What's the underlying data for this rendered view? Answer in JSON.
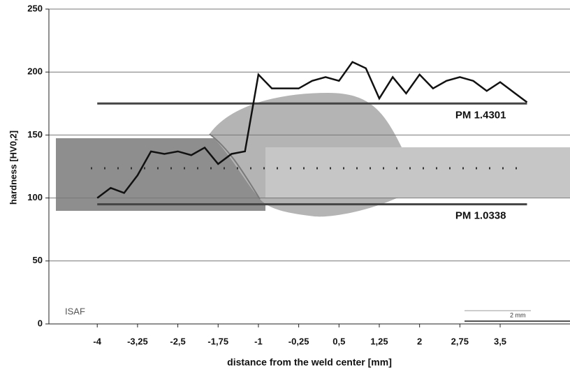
{
  "chart_data": {
    "type": "line",
    "xlabel": "distance from the weld center [mm]",
    "ylabel": "hardness [HV0,2]",
    "xlim": [
      -4.9,
      4.8
    ],
    "ylim": [
      0,
      250
    ],
    "yticks": [
      0,
      50,
      100,
      150,
      200,
      250
    ],
    "xticks": [
      {
        "value": -4,
        "label": "-4"
      },
      {
        "value": -3.25,
        "label": "-3,25"
      },
      {
        "value": -2.5,
        "label": "-2,5"
      },
      {
        "value": -1.75,
        "label": "-1,75"
      },
      {
        "value": -1,
        "label": "-1"
      },
      {
        "value": -0.25,
        "label": "-0,25"
      },
      {
        "value": 0.5,
        "label": "0,5"
      },
      {
        "value": 1.25,
        "label": "1,25"
      },
      {
        "value": 2,
        "label": "2"
      },
      {
        "value": 2.75,
        "label": "2,75"
      },
      {
        "value": 3.5,
        "label": "3,5"
      }
    ],
    "grid": true,
    "series": [
      {
        "color": "#111111",
        "x": [
          -4,
          -3.75,
          -3.5,
          -3.25,
          -3,
          -2.75,
          -2.5,
          -2.25,
          -2,
          -1.75,
          -1.5,
          -1.25,
          -1,
          -0.75,
          -0.5,
          -0.25,
          0,
          0.25,
          0.5,
          0.75,
          1,
          1.25,
          1.5,
          1.75,
          2,
          2.25,
          2.5,
          2.75,
          3,
          3.25,
          3.5,
          3.75,
          4
        ],
        "values": [
          100,
          108,
          104,
          118,
          137,
          135,
          137,
          134,
          140,
          127,
          135,
          137,
          198,
          187,
          187,
          187,
          193,
          196,
          193,
          208,
          203,
          179,
          196,
          183,
          198,
          187,
          193,
          196,
          193,
          185,
          192,
          184,
          176
        ]
      }
    ],
    "reference_lines": [
      {
        "label": "PM 1.4301",
        "value": 175,
        "color": "#444444"
      },
      {
        "label": "PM 1.0338",
        "value": 95,
        "color": "#444444"
      }
    ],
    "annotations": [
      "ISAF",
      "2 mm"
    ]
  }
}
